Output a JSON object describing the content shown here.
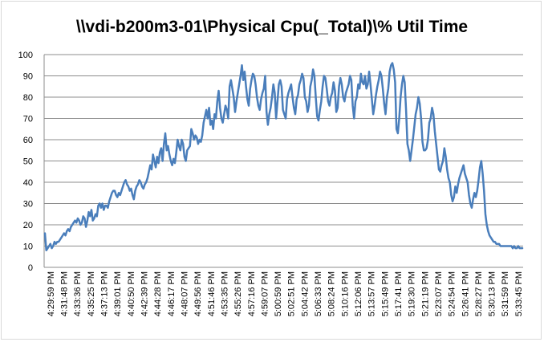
{
  "chart_data": {
    "type": "line",
    "title": "\\\\vdi-b200m3-01\\Physical Cpu(_Total)\\% Util Time",
    "xlabel": "",
    "ylabel": "",
    "ylim": [
      0,
      100
    ],
    "yticks": [
      0,
      10,
      20,
      30,
      40,
      50,
      60,
      70,
      80,
      90,
      100
    ],
    "grid": true,
    "legend": "none",
    "x_tick_labels": [
      "4:29:59 PM",
      "4:31:48 PM",
      "4:33:36 PM",
      "4:35:25 PM",
      "4:37:13 PM",
      "4:39:01 PM",
      "4:40:50 PM",
      "4:42:39 PM",
      "4:44:28 PM",
      "4:46:17 PM",
      "4:48:07 PM",
      "4:49:56 PM",
      "4:51:46 PM",
      "4:53:35 PM",
      "4:55:26 PM",
      "4:57:16 PM",
      "4:59:07 PM",
      "5:00:59 PM",
      "5:02:51 PM",
      "5:04:42 PM",
      "5:06:33 PM",
      "5:08:24 PM",
      "5:10:16 PM",
      "5:12:06 PM",
      "5:13:57 PM",
      "5:15:49 PM",
      "5:17:41 PM",
      "5:19:30 PM",
      "5:21:19 PM",
      "5:23:07 PM",
      "5:24:54 PM",
      "5:26:41 PM",
      "5:28:27 PM",
      "5:30:13 PM",
      "5:31:59 PM",
      "5:33:45 PM"
    ],
    "series": [
      {
        "color": "#4a7ebb",
        "values": [
          16,
          8,
          9,
          10,
          11,
          9,
          10,
          12,
          11,
          12,
          12,
          13,
          14,
          15,
          16,
          15,
          17,
          18,
          17,
          19,
          20,
          21,
          22,
          21,
          23,
          22,
          20,
          21,
          24,
          23,
          19,
          22,
          26,
          24,
          27,
          22,
          23,
          25,
          24,
          29,
          30,
          28,
          30,
          27,
          29,
          29,
          28,
          31,
          33,
          35,
          36,
          36,
          34,
          33,
          35,
          34,
          36,
          38,
          40,
          41,
          39,
          38,
          36,
          37,
          34,
          32,
          36,
          38,
          39,
          41,
          40,
          38,
          37,
          39,
          40,
          42,
          45,
          48,
          46,
          53,
          50,
          47,
          52,
          49,
          54,
          56,
          50,
          58,
          63,
          55,
          57,
          53,
          50,
          48,
          51,
          49,
          54,
          60,
          57,
          55,
          60,
          58,
          52,
          50,
          55,
          56,
          57,
          65,
          63,
          60,
          62,
          61,
          58,
          60,
          59,
          62,
          68,
          71,
          74,
          70,
          75,
          67,
          69,
          65,
          72,
          70,
          78,
          83,
          75,
          70,
          68,
          72,
          76,
          74,
          70,
          85,
          88,
          84,
          80,
          73,
          78,
          82,
          86,
          90,
          95,
          88,
          92,
          85,
          79,
          76,
          84,
          88,
          91,
          90,
          86,
          80,
          76,
          74,
          79,
          82,
          84,
          90,
          73,
          67,
          72,
          75,
          80,
          86,
          82,
          70,
          78,
          86,
          88,
          85,
          74,
          72,
          70,
          79,
          82,
          84,
          86,
          80,
          75,
          72,
          79,
          81,
          86,
          88,
          91,
          89,
          80,
          78,
          73,
          76,
          85,
          88,
          93,
          90,
          80,
          71,
          69,
          74,
          78,
          85,
          90,
          89,
          84,
          78,
          76,
          80,
          82,
          87,
          83,
          73,
          75,
          85,
          89,
          86,
          80,
          78,
          82,
          84,
          86,
          90,
          88,
          76,
          70,
          78,
          80,
          86,
          84,
          91,
          87,
          86,
          90,
          84,
          86,
          92,
          86,
          79,
          72,
          76,
          81,
          85,
          88,
          92,
          90,
          84,
          77,
          72,
          80,
          84,
          92,
          95,
          96,
          93,
          87,
          65,
          63,
          70,
          80,
          86,
          90,
          87,
          74,
          58,
          55,
          50,
          55,
          60,
          66,
          72,
          75,
          80,
          77,
          70,
          59,
          55,
          55,
          56,
          60,
          68,
          70,
          75,
          72,
          64,
          58,
          52,
          46,
          45,
          48,
          50,
          56,
          52,
          46,
          42,
          40,
          34,
          31,
          33,
          38,
          35,
          39,
          42,
          44,
          46,
          48,
          44,
          42,
          40,
          34,
          30,
          28,
          32,
          35,
          33,
          36,
          41,
          47,
          50,
          44,
          36,
          25,
          20,
          17,
          15,
          14,
          13,
          12,
          12,
          11,
          11,
          11,
          10,
          10,
          10,
          10,
          10,
          10,
          10,
          10,
          10,
          9,
          10,
          9,
          9,
          10,
          9,
          9,
          9
        ]
      }
    ]
  }
}
